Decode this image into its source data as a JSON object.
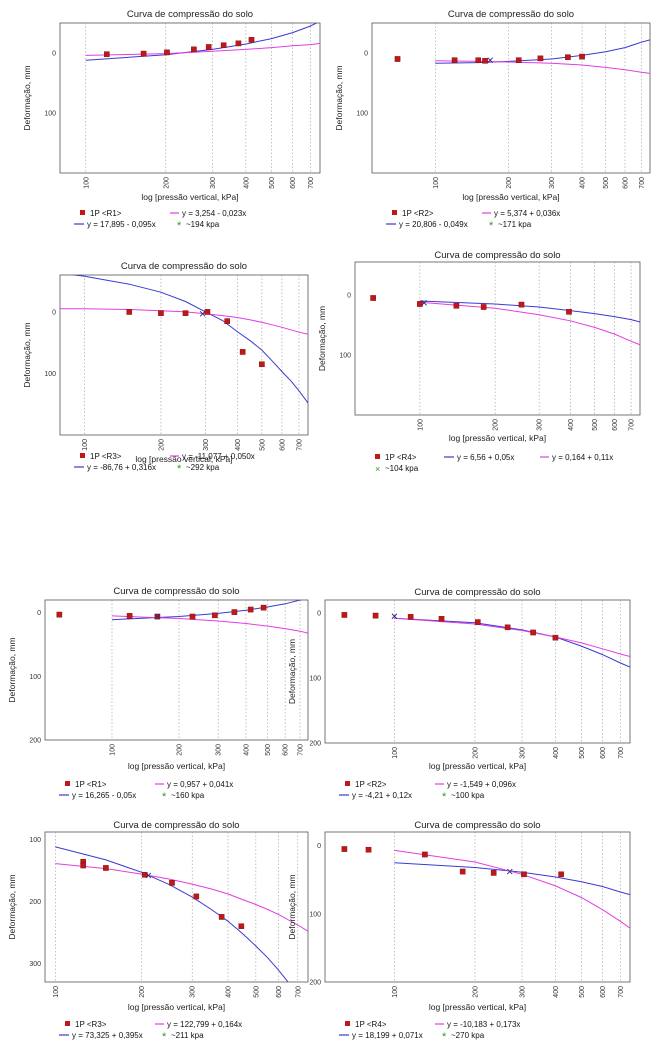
{
  "colors": {
    "points": "#c01818",
    "blue": "#3a3ad0",
    "magenta": "#e23ee2",
    "star": "#2a9a2a",
    "cross": "#2a2a7a"
  },
  "chart_data": [
    {
      "type": "scatter",
      "title": "Curva de compressão do solo",
      "xlabel": "log [pressão vertical, kPa]",
      "ylabel": "Deformação, mm",
      "xscale": "log",
      "xlim": [
        80,
        760
      ],
      "ylim": [
        -50,
        200
      ],
      "yinvert": true,
      "xticks": [
        100,
        200,
        300,
        400,
        500,
        600,
        700
      ],
      "yticks": [
        0,
        100
      ],
      "grid": "x",
      "points": [
        [
          120,
          2
        ],
        [
          165,
          1
        ],
        [
          202,
          -1
        ],
        [
          255,
          -6
        ],
        [
          290,
          -10
        ],
        [
          330,
          -13
        ],
        [
          375,
          -16
        ],
        [
          420,
          -22
        ]
      ],
      "fits": [
        {
          "color": "blue",
          "x": [
            100,
            200,
            300,
            400,
            500,
            600,
            700,
            760
          ],
          "y": [
            12,
            3,
            -6,
            -15,
            -24,
            -34,
            -45,
            -53
          ]
        },
        {
          "color": "magenta",
          "x": [
            100,
            200,
            300,
            400,
            500,
            600,
            700,
            760
          ],
          "y": [
            4,
            1,
            -3,
            -6,
            -9,
            -12,
            -14,
            -16
          ]
        }
      ],
      "legend": {
        "points": "1P <R1>",
        "magenta": "y = 3,254 - 0,023x",
        "blue": "y = 17,895 - 0,095x",
        "star": "~194 kpa"
      }
    },
    {
      "type": "scatter",
      "title": "Curva de compressão do solo",
      "xlabel": "log [pressão vertical, kPa]",
      "ylabel": "Deformação, mm",
      "xscale": "log",
      "xlim": [
        55,
        760
      ],
      "ylim": [
        -50,
        200
      ],
      "yinvert": true,
      "xticks": [
        100,
        200,
        300,
        400,
        500,
        600,
        700
      ],
      "yticks": [
        0,
        100
      ],
      "grid": "x",
      "points": [
        [
          70,
          10
        ],
        [
          120,
          12
        ],
        [
          150,
          12
        ],
        [
          160,
          13
        ],
        [
          220,
          12
        ],
        [
          270,
          9
        ],
        [
          350,
          7
        ],
        [
          400,
          6
        ]
      ],
      "cross": [
        168,
        12
      ],
      "fits": [
        {
          "color": "blue",
          "x": [
            100,
            150,
            200,
            300,
            400,
            500,
            600,
            700,
            760
          ],
          "y": [
            17,
            16,
            14,
            10,
            4,
            -2,
            -9,
            -18,
            -22
          ]
        },
        {
          "color": "magenta",
          "x": [
            100,
            150,
            200,
            300,
            400,
            500,
            600,
            700,
            760
          ],
          "y": [
            13,
            14,
            15,
            17,
            20,
            24,
            28,
            32,
            34
          ]
        }
      ],
      "legend": {
        "points": "1P <R2>",
        "magenta": "y = 5,374 + 0,036x",
        "blue": "y = 20,806 - 0,049x",
        "star": "~171 kpa"
      }
    },
    {
      "type": "scatter",
      "title": "Curva de compressão do solo",
      "xlabel": "log [pressão vertical, kPa]",
      "ylabel": "Deformação, mm",
      "xscale": "log",
      "xlim": [
        80,
        760
      ],
      "ylim": [
        -60,
        200
      ],
      "yinvert": true,
      "xticks": [
        100,
        200,
        300,
        400,
        500,
        600,
        700
      ],
      "yticks": [
        0,
        100
      ],
      "grid": "x",
      "points": [
        [
          150,
          0
        ],
        [
          200,
          2
        ],
        [
          250,
          2
        ],
        [
          305,
          0
        ],
        [
          365,
          15
        ],
        [
          420,
          65
        ],
        [
          500,
          85
        ]
      ],
      "cross": [
        292,
        3
      ],
      "fits": [
        {
          "color": "blue",
          "x": [
            80,
            100,
            150,
            200,
            250,
            300,
            350,
            400,
            450,
            500,
            550,
            600,
            650,
            700,
            760
          ],
          "y": [
            -63,
            -58,
            -45,
            -32,
            -17,
            0,
            14,
            32,
            47,
            62,
            80,
            97,
            112,
            128,
            148
          ]
        },
        {
          "color": "magenta",
          "x": [
            80,
            100,
            150,
            200,
            250,
            300,
            350,
            400,
            450,
            500,
            550,
            600,
            650,
            700,
            760
          ],
          "y": [
            -5,
            -5,
            -4,
            -2,
            0,
            3,
            6,
            9,
            13,
            17,
            21,
            25,
            29,
            33,
            36
          ]
        }
      ],
      "legend": {
        "points": "1P <R3>",
        "magenta": "y = -11,077 + 0,050x",
        "blue": "y = -86,76 + 0,316x",
        "star": "~292 kpa"
      }
    },
    {
      "type": "scatter",
      "title": "Curva de compressão do solo",
      "xlabel": "log [pressão vertical, kPa]",
      "ylabel": "Deformação, mm",
      "xscale": "log",
      "xlim": [
        55,
        760
      ],
      "ylim": [
        -55,
        200
      ],
      "yinvert": true,
      "xticks": [
        100,
        200,
        300,
        400,
        500,
        600,
        700
      ],
      "yticks": [
        0,
        100
      ],
      "grid": "x",
      "points": [
        [
          65,
          5
        ],
        [
          100,
          15
        ],
        [
          140,
          18
        ],
        [
          180,
          20
        ],
        [
          255,
          16
        ],
        [
          395,
          28
        ]
      ],
      "cross": [
        104,
        13
      ],
      "fits": [
        {
          "color": "blue",
          "x": [
            100,
            200,
            300,
            400,
            500,
            600,
            700,
            760
          ],
          "y": [
            10,
            15,
            20,
            26,
            31,
            36,
            41,
            45
          ]
        },
        {
          "color": "magenta",
          "x": [
            100,
            200,
            300,
            400,
            500,
            600,
            700,
            760
          ],
          "y": [
            12,
            22,
            33,
            43,
            54,
            65,
            77,
            83
          ]
        }
      ],
      "legend": {
        "points": "1P <R4>",
        "magenta": "y = 0,164 + 0,11x",
        "blue": "y = 6,56 + 0,05x",
        "cross": "~104 kpa"
      }
    },
    {
      "type": "scatter",
      "title": "Curva de compressão do solo",
      "xlabel": "log [pressão vertical, kPa]",
      "ylabel": "Deformação, mm",
      "xscale": "log",
      "xlim": [
        50,
        760
      ],
      "ylim": [
        -20,
        200
      ],
      "yinvert": true,
      "xticks": [
        100,
        200,
        300,
        400,
        500,
        600,
        700
      ],
      "yticks": [
        0,
        100,
        200
      ],
      "grid": "x",
      "points": [
        [
          58,
          3
        ],
        [
          120,
          5
        ],
        [
          160,
          6
        ],
        [
          230,
          6
        ],
        [
          290,
          4
        ],
        [
          355,
          -1
        ],
        [
          420,
          -5
        ],
        [
          480,
          -8
        ]
      ],
      "cross": [
        160,
        6
      ],
      "fits": [
        {
          "color": "blue",
          "x": [
            100,
            200,
            300,
            400,
            500,
            600,
            700,
            760
          ],
          "y": [
            11,
            6,
            1,
            -4,
            -9,
            -14,
            -20,
            -22
          ]
        },
        {
          "color": "magenta",
          "x": [
            100,
            200,
            300,
            400,
            500,
            600,
            700,
            760
          ],
          "y": [
            5,
            9,
            13,
            17,
            21,
            25,
            29,
            32
          ]
        }
      ],
      "legend": {
        "points": "1P <R1>",
        "magenta": "y = 0,957 + 0,041x",
        "blue": "y = 16,265 - 0,05x",
        "star": "~160 kpa"
      }
    },
    {
      "type": "scatter",
      "title": "Curva de compressão do solo",
      "xlabel": "log [pressão vertical, kPa]",
      "ylabel": "Deformação, mm",
      "xscale": "log",
      "xlim": [
        55,
        760
      ],
      "ylim": [
        -20,
        200
      ],
      "yinvert": true,
      "xticks": [
        100,
        200,
        300,
        400,
        500,
        600,
        700
      ],
      "yticks": [
        0,
        100,
        200
      ],
      "grid": "x",
      "points": [
        [
          65,
          3
        ],
        [
          85,
          4
        ],
        [
          115,
          6
        ],
        [
          150,
          9
        ],
        [
          205,
          14
        ],
        [
          265,
          22
        ],
        [
          330,
          30
        ],
        [
          400,
          38
        ]
      ],
      "cross": [
        100,
        5
      ],
      "fits": [
        {
          "color": "blue",
          "x": [
            100,
            200,
            300,
            400,
            500,
            600,
            700,
            760
          ],
          "y": [
            8,
            15,
            26,
            37,
            51,
            64,
            77,
            83
          ]
        },
        {
          "color": "magenta",
          "x": [
            100,
            200,
            300,
            400,
            500,
            600,
            700,
            760
          ],
          "y": [
            8,
            17,
            27,
            37,
            46,
            55,
            63,
            67
          ]
        }
      ],
      "legend": {
        "points": "1P <R2>",
        "magenta": "y = -1,549 + 0,096x",
        "blue": "y = -4,21 + 0,12x",
        "star": "~100 kpa"
      }
    },
    {
      "type": "scatter",
      "title": "Curva de compressão do solo",
      "xlabel": "log [pressão vertical, kPa]",
      "ylabel": "Deformação, mm",
      "xscale": "log",
      "xlim": [
        92,
        760
      ],
      "ylim": [
        88,
        330
      ],
      "yinvert": true,
      "xticks": [
        100,
        200,
        300,
        400,
        500,
        600,
        700
      ],
      "yticks": [
        100,
        200,
        300
      ],
      "grid": "x",
      "points": [
        [
          125,
          136
        ],
        [
          125,
          142
        ],
        [
          150,
          146
        ],
        [
          205,
          157
        ],
        [
          255,
          170
        ],
        [
          310,
          192
        ],
        [
          380,
          225
        ],
        [
          445,
          240
        ]
      ],
      "cross": [
        211,
        158
      ],
      "fits": [
        {
          "color": "blue",
          "x": [
            100,
            150,
            200,
            250,
            300,
            350,
            400,
            450,
            500,
            550,
            600,
            650,
            700
          ],
          "y": [
            112,
            133,
            153,
            173,
            193,
            213,
            232,
            252,
            272,
            291,
            311,
            331,
            351
          ]
        },
        {
          "color": "magenta",
          "x": [
            100,
            150,
            200,
            250,
            300,
            350,
            400,
            450,
            500,
            550,
            600,
            650,
            700,
            760
          ],
          "y": [
            139,
            147,
            156,
            164,
            172,
            180,
            188,
            197,
            205,
            213,
            221,
            230,
            238,
            248
          ]
        }
      ],
      "legend": {
        "points": "1P <R3>",
        "magenta": "y = 122,799 + 0,164x",
        "blue": "y = 73,325 + 0,395x",
        "star": "~211 kpa"
      }
    },
    {
      "type": "scatter",
      "title": "Curva de compressão do solo",
      "xlabel": "log [pressão vertical, kPa]",
      "ylabel": "Deformação, mm",
      "xscale": "log",
      "xlim": [
        55,
        760
      ],
      "ylim": [
        -20,
        200
      ],
      "yinvert": true,
      "xticks": [
        100,
        200,
        300,
        400,
        500,
        600,
        700
      ],
      "yticks": [
        0,
        100,
        200
      ],
      "grid": "x",
      "points": [
        [
          65,
          5
        ],
        [
          80,
          6
        ],
        [
          130,
          13
        ],
        [
          180,
          38
        ],
        [
          235,
          40
        ],
        [
          305,
          42
        ],
        [
          420,
          42
        ]
      ],
      "cross": [
        270,
        38
      ],
      "fits": [
        {
          "color": "blue",
          "x": [
            100,
            200,
            300,
            400,
            500,
            600,
            700,
            760
          ],
          "y": [
            25,
            32,
            39,
            46,
            53,
            60,
            68,
            72
          ]
        },
        {
          "color": "magenta",
          "x": [
            100,
            200,
            300,
            400,
            500,
            600,
            700,
            760
          ],
          "y": [
            7,
            24,
            42,
            59,
            76,
            94,
            111,
            121
          ]
        }
      ],
      "legend": {
        "points": "1P <R4>",
        "magenta": "y = -10,183 + 0,173x",
        "blue": "y = 18,199 + 0,071x",
        "star": "~270 kpa"
      }
    }
  ]
}
